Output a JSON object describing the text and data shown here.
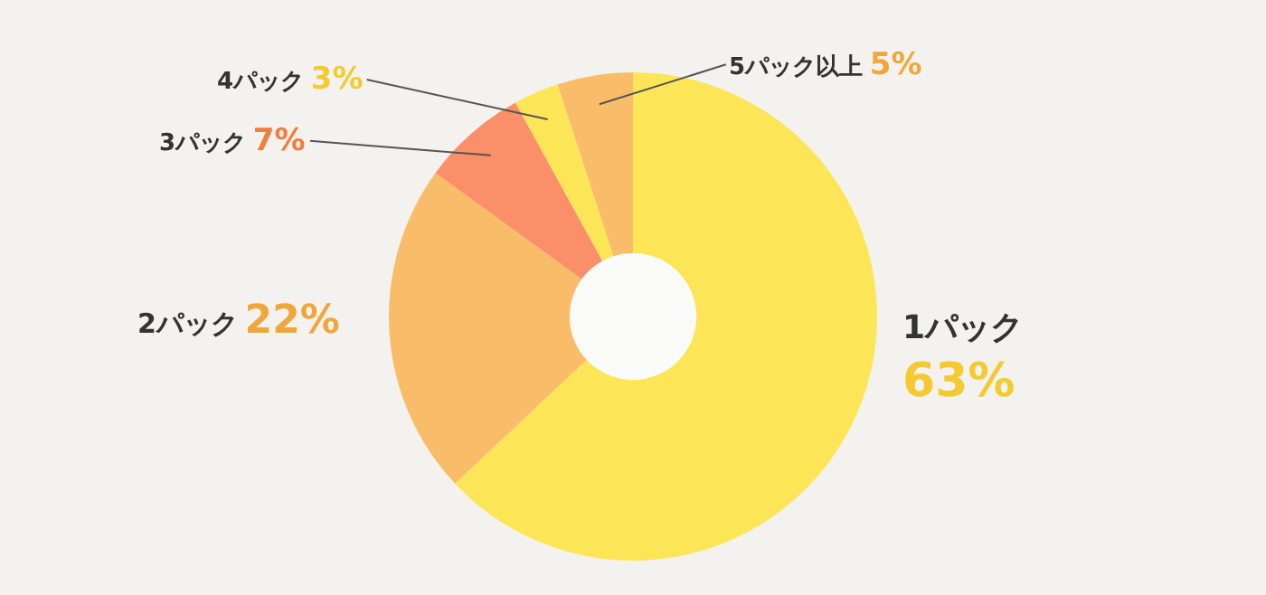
{
  "chart_data": {
    "type": "donut",
    "categories": [
      "1パック",
      "2パック",
      "3パック",
      "4パック",
      "5パック以上"
    ],
    "values": [
      63,
      22,
      7,
      3,
      5
    ],
    "value_labels": [
      "63%",
      "22%",
      "7%",
      "3%",
      "5%"
    ],
    "colors": [
      "#fce658",
      "#f9bd6a",
      "#fb8f69",
      "#fce658",
      "#f9bd6a"
    ]
  }
}
